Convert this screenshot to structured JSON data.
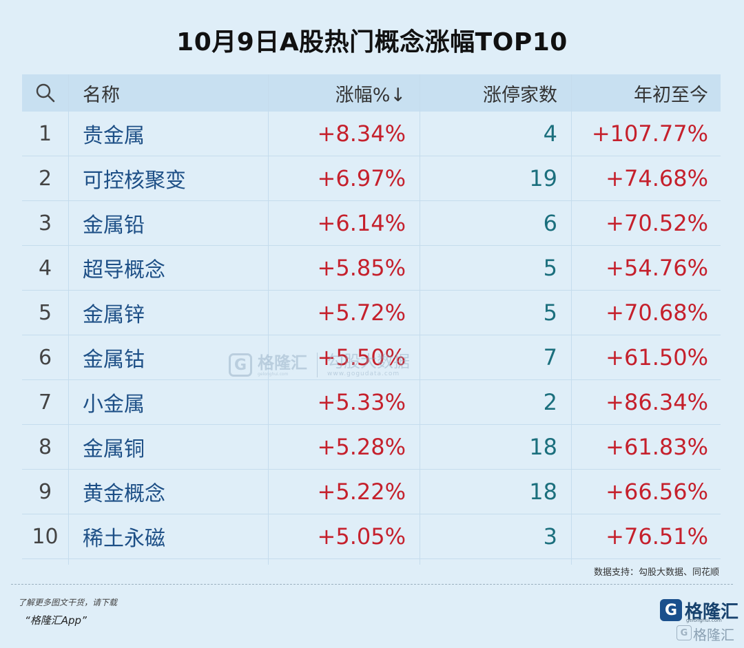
{
  "title": "10月9日A股热门概念涨幅TOP10",
  "table": {
    "headers": {
      "search_icon": "search-icon",
      "name": "名称",
      "change": "涨幅%↓",
      "limit_up": "涨停家数",
      "ytd": "年初至今"
    },
    "rows": [
      {
        "rank": "1",
        "name": "贵金属",
        "change": "+8.34%",
        "limit_up": "4",
        "ytd": "+107.77%"
      },
      {
        "rank": "2",
        "name": "可控核聚变",
        "change": "+6.97%",
        "limit_up": "19",
        "ytd": "+74.68%"
      },
      {
        "rank": "3",
        "name": "金属铅",
        "change": "+6.14%",
        "limit_up": "6",
        "ytd": "+70.52%"
      },
      {
        "rank": "4",
        "name": "超导概念",
        "change": "+5.85%",
        "limit_up": "5",
        "ytd": "+54.76%"
      },
      {
        "rank": "5",
        "name": "金属锌",
        "change": "+5.72%",
        "limit_up": "5",
        "ytd": "+70.68%"
      },
      {
        "rank": "6",
        "name": "金属钴",
        "change": "+5.50%",
        "limit_up": "7",
        "ytd": "+61.50%"
      },
      {
        "rank": "7",
        "name": "小金属",
        "change": "+5.33%",
        "limit_up": "2",
        "ytd": "+86.34%"
      },
      {
        "rank": "8",
        "name": "金属铜",
        "change": "+5.28%",
        "limit_up": "18",
        "ytd": "+61.83%"
      },
      {
        "rank": "9",
        "name": "黄金概念",
        "change": "+5.22%",
        "limit_up": "18",
        "ytd": "+66.56%"
      },
      {
        "rank": "10",
        "name": "稀土永磁",
        "change": "+5.05%",
        "limit_up": "3",
        "ytd": "+76.51%"
      }
    ]
  },
  "source": "数据支持：勾股大数据、同花顺",
  "footer": {
    "promo_line1": "了解更多图文干货，请下载",
    "promo_line2": "“格隆汇App”",
    "logo_mark": "G",
    "logo_name": "格隆汇",
    "logo_url": "gelonghui.com",
    "watermark": "格隆汇"
  },
  "center_watermark": {
    "mark": "G",
    "brand": "格隆汇",
    "brand_url": "gelonghui.com",
    "partner": "勾股大数据",
    "partner_url": "www.gogudata.com"
  },
  "colors": {
    "positive": "#c5202c",
    "name_text": "#1d4f86",
    "count_text": "#1b6f7d",
    "header_bg": "#c8e0f1",
    "page_bg": "#dfeef8"
  }
}
